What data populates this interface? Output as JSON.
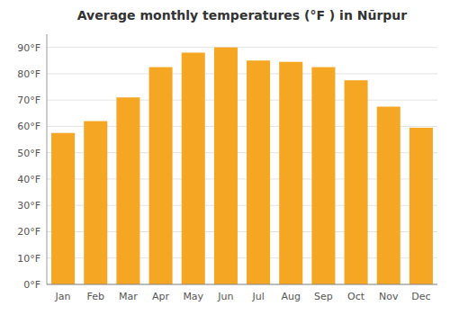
{
  "chart_data": {
    "type": "bar",
    "title": "Average monthly temperatures (°F ) in Nūrpur",
    "categories": [
      "Jan",
      "Feb",
      "Mar",
      "Apr",
      "May",
      "Jun",
      "Jul",
      "Aug",
      "Sep",
      "Oct",
      "Nov",
      "Dec"
    ],
    "values": [
      57.5,
      62,
      71,
      82.5,
      88,
      90,
      85,
      84.5,
      82.5,
      77.5,
      67.5,
      59.5
    ],
    "color": "#F5A623",
    "ylim": [
      0,
      95
    ],
    "yticks": [
      {
        "value": 0,
        "label": "0°F"
      },
      {
        "value": 10,
        "label": "10°F"
      },
      {
        "value": 20,
        "label": "20°F"
      },
      {
        "value": 30,
        "label": "30°F"
      },
      {
        "value": 40,
        "label": "40°F"
      },
      {
        "value": 50,
        "label": "50°F"
      },
      {
        "value": 60,
        "label": "60°F"
      },
      {
        "value": 70,
        "label": "70°F"
      },
      {
        "value": 80,
        "label": "80°F"
      },
      {
        "value": 90,
        "label": "90°F"
      }
    ],
    "grid": true
  }
}
